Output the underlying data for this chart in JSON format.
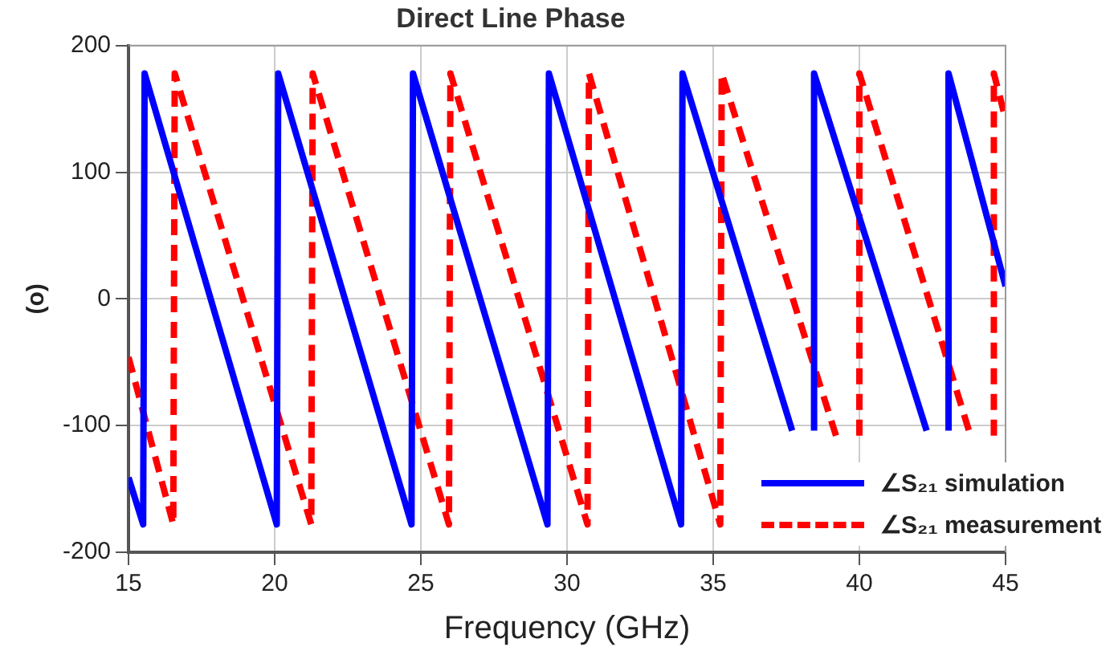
{
  "chart_data": {
    "type": "line",
    "title": "Direct Line Phase",
    "xlabel": "Frequency (GHz)",
    "ylabel": "(o)",
    "xlim": [
      15,
      45
    ],
    "xticks": [
      15,
      20,
      25,
      30,
      35,
      40,
      45
    ],
    "ylim": [
      -200,
      200
    ],
    "yticks": [
      -200,
      -100,
      0,
      100,
      200
    ],
    "grid": true,
    "legend": "bottom right",
    "marker": "none",
    "series": [
      {
        "name": "∠S₂₁ simulation",
        "color": "#0000ff",
        "line_style": "solid",
        "x": [
          15,
          15.5,
          15.55,
          20.07,
          20.12,
          24.68,
          24.73,
          29.33,
          29.38,
          33.9,
          33.95,
          37.7,
          37.9,
          38.45,
          38.45,
          42.3,
          42.5,
          43.05,
          43.05,
          45
        ],
        "values": [
          -141,
          -178,
          178,
          -178,
          178,
          -178,
          178,
          -178,
          178,
          -178,
          178,
          -104,
          null,
          -104,
          178,
          -104,
          null,
          -104,
          178,
          10
        ]
      },
      {
        "name": "∠S₂₁ measurement",
        "color": "#ff0000",
        "line_style": "dashed",
        "x": [
          15,
          16.53,
          16.58,
          21.25,
          21.3,
          25.96,
          26.01,
          30.7,
          30.75,
          35.24,
          35.29,
          39.2,
          39.5,
          40.0,
          40.0,
          43.8,
          44.2,
          44.6,
          44.6,
          45
        ],
        "values": [
          -46,
          -178,
          178,
          -178,
          178,
          -178,
          178,
          -178,
          178,
          -178,
          178,
          -108,
          null,
          -108,
          178,
          -108,
          null,
          -108,
          178,
          142
        ]
      }
    ]
  }
}
